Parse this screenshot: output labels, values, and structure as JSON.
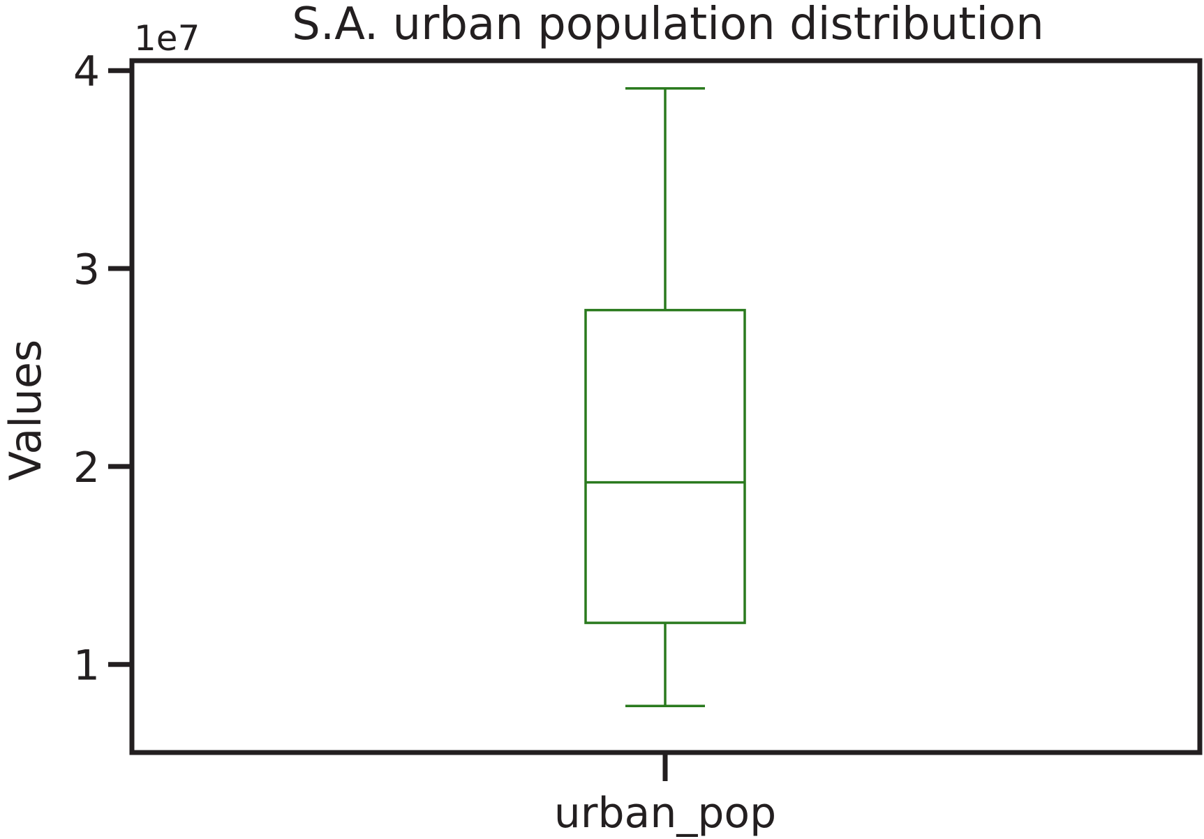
{
  "chart_data": {
    "type": "box",
    "title": "S.A. urban population distribution",
    "xlabel": "",
    "ylabel": "Values",
    "offset_label": "1e7",
    "categories": [
      "urban_pop"
    ],
    "boxes": [
      {
        "name": "urban_pop",
        "whisker_low": 7900000.0,
        "q1": 12100000.0,
        "median": 19200000.0,
        "q3": 27900000.0,
        "whisker_high": 39100000.0
      }
    ],
    "yticks": [
      {
        "value": 10000000.0,
        "label": "1"
      },
      {
        "value": 20000000.0,
        "label": "2"
      },
      {
        "value": 30000000.0,
        "label": "3"
      },
      {
        "value": 40000000.0,
        "label": "4"
      }
    ],
    "ylim": [
      5550000.0,
      40500000.0
    ],
    "grid": false,
    "colors": {
      "box": "#2a7a1e",
      "axis": "#231f20",
      "text": "#231f20"
    }
  }
}
